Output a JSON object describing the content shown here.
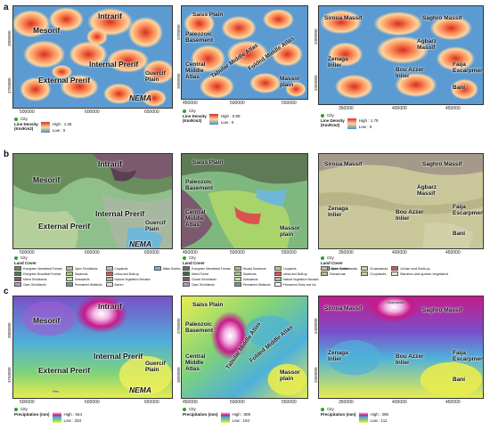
{
  "rows": [
    {
      "letter": "a"
    },
    {
      "letter": "b"
    },
    {
      "letter": "c"
    }
  ],
  "panel1_labels": {
    "intrarif": "Intrarif",
    "mesorif": "Mesorif",
    "external_prerif": "External Prerif",
    "internal_prerif": "Internal Prerif",
    "guercif_plain": "Guercif\nPlain",
    "nema": "NEMA",
    "fes": "Fès"
  },
  "panel2_labels": {
    "saiss_plain": "Saiss Plain",
    "paleozoic_basement": "Paleozoic\nBasement",
    "central_middle_atlas": "Central\nMiddle\nAtlas",
    "tabular_middle_atlas": "Tabular Middle Atlas",
    "folded_middle_atlas": "Folded Middle Atlas",
    "massor_plain": "Massor\nplain"
  },
  "panel3_labels": {
    "siroua_massif": "Siroua Massif",
    "saghro_massif": "Saghro Massif",
    "agbarz_massif": "Agbarz\nMassif",
    "zenaga_inlier": "Zenaga\nInlier",
    "bou_azzer_inlier": "Bou Azzer\nInlier",
    "faija_escarpment": "Faija\nEscarpment",
    "bani": "Bani",
    "ouarzazate": "Ouarzazate"
  },
  "xticks": {
    "p1": [
      "500000",
      "600000",
      "650000"
    ],
    "p2": [
      "450000",
      "500000",
      "550000"
    ],
    "p3": [
      "350000",
      "400000",
      "450000"
    ]
  },
  "yticks": {
    "p1": [
      "3800000",
      "3750000"
    ],
    "p2": [
      "3700000",
      "3650000"
    ],
    "p3": [
      "3400000",
      "3350000"
    ]
  },
  "legend_a": [
    {
      "city": "City",
      "title": "Line Density\n(Km/Km2)",
      "high": "High : 1.06",
      "low": "Low : 0"
    },
    {
      "city": "City",
      "title": "Line Density\n(Km/Km2)",
      "high": "High : 0.89",
      "low": "Low : 0"
    },
    {
      "city": "City",
      "title": "Line Density\n(Km/Km2)",
      "high": "High : 1.79",
      "low": "Low : 0"
    }
  ],
  "legend_b": [
    {
      "city": "City",
      "title": "Land Cover",
      "items": [
        "Evergreen Needleleaf Forests",
        "Open Shrublands",
        "Croplands",
        "Water Bodies",
        "Evergreen Broadleaf Forests",
        "Savannas",
        "Urban and Built-up",
        "",
        "Mixed Shrublands",
        "Grasslands",
        "Natural Vegetation Mosaics",
        "",
        "Open Shrublands",
        "Permanent Wetlands",
        "Barren",
        ""
      ]
    },
    {
      "city": "City",
      "title": "Land Cover",
      "items": [
        "Evergreen Needleleaf Forests",
        "Woody Savannas",
        "Croplands",
        "Water Bodies",
        "Mixed Forest",
        "Savannas",
        "Urban and Built-up",
        "",
        "Closed Shrublands",
        "Grasslands",
        "Natural Vegetation Mosaics",
        "",
        "Open Shrublands",
        "Permanent Wetlands",
        "Permanent Snow and Ice",
        ""
      ]
    },
    {
      "city": "City",
      "title": "Land Cover",
      "items": [
        "Open Shrublands",
        "Grasslands",
        "Urban and Built-up",
        "Savannas",
        "Croplands",
        "Barrens and sparse vegetated"
      ]
    }
  ],
  "legend_c": [
    {
      "city": "City",
      "title": "Precipitation (mm)",
      "high": "High : 944",
      "low": "Low : 333"
    },
    {
      "city": "City",
      "title": "Precipitation (mm)",
      "high": "High : 808",
      "low": "Low : 194"
    },
    {
      "city": "City",
      "title": "Precipitation (mm)",
      "high": "High : 395",
      "low": "Low : 111"
    }
  ],
  "colors": {
    "density_high": "#d7301f",
    "density_mid": "#fdd49e",
    "density_low": "#4a8fc7",
    "precip_high": "#f7f7f7",
    "precip_mid": "#c51b8a",
    "precip_low": "#fff34c"
  }
}
